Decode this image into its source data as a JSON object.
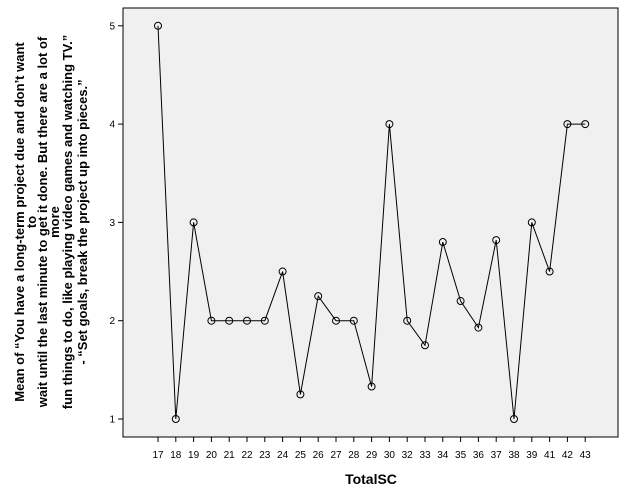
{
  "chart_data": {
    "type": "line",
    "xlabel": "TotalSC",
    "ylabel_lines": [
      "Mean of “You have a long-term project due and don’t want",
      "to",
      "wait until the last minute to get it done. But there are a lot of",
      "more",
      "fun things to do, like playing video games and watching TV.”",
      "- “Set goals, break the project up into pieces.”"
    ],
    "categories": [
      "17",
      "18",
      "19",
      "20",
      "21",
      "22",
      "23",
      "24",
      "25",
      "26",
      "27",
      "28",
      "29",
      "30",
      "32",
      "33",
      "34",
      "35",
      "36",
      "37",
      "38",
      "39",
      "41",
      "42",
      "43"
    ],
    "values": [
      5,
      1,
      3,
      2,
      2,
      2,
      2,
      2.5,
      1.25,
      2.25,
      2,
      2,
      1.33,
      4,
      2,
      1.75,
      2.8,
      2.2,
      1.93,
      2.82,
      1,
      3,
      2.5,
      4,
      4
    ],
    "yticks": [
      1,
      2,
      3,
      4,
      5
    ],
    "ylim": [
      0.9,
      5.1
    ],
    "grid": false,
    "plot_background": "#f0f0f0",
    "line_color": "#000000"
  }
}
